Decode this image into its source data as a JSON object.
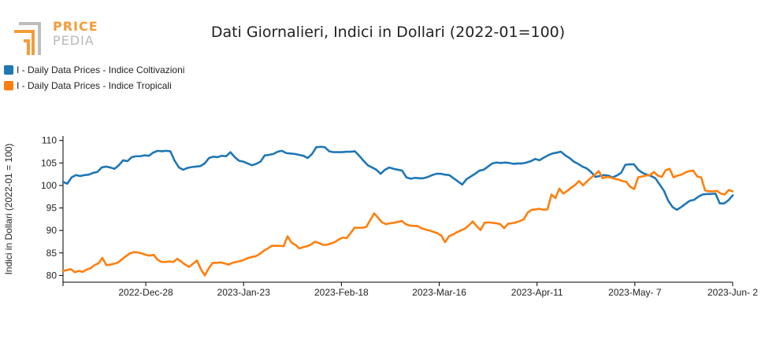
{
  "logo": {
    "text_top": "PRICE",
    "text_bottom": "PEDIA"
  },
  "chart_data": {
    "type": "line",
    "title": "Dati Giornalieri, Indici in Dollari (2022-01=100)",
    "ylabel": "Indici in Dollari (2022-01 = 100)",
    "xlabel": "",
    "x_ticks": [
      "2022-Dec-28",
      "2023-Jan-23",
      "2023-Feb-18",
      "2023-Mar-16",
      "2023-Apr-11",
      "2023-May- 7",
      "2023-Jun- 2"
    ],
    "x_range": [
      "2022-Dec-06",
      "2023-Jun-02"
    ],
    "y_ticks": [
      80,
      85,
      90,
      95,
      100,
      105,
      110
    ],
    "ylim": [
      78.5,
      111
    ],
    "legend_position": "top-left",
    "grid": false,
    "series": [
      {
        "name": "I - Daily Data Prices - Indice Coltivazioni",
        "color": "#1f77b4",
        "values": [
          100.8,
          100.4,
          101.8,
          102.3,
          102.1,
          102.3,
          102.4,
          102.8,
          103.0,
          104.0,
          104.2,
          104.0,
          103.7,
          104.5,
          105.6,
          105.4,
          106.3,
          106.5,
          106.5,
          106.7,
          106.6,
          107.3,
          107.7,
          107.6,
          107.7,
          107.6,
          105.5,
          104.0,
          103.5,
          103.9,
          104.1,
          104.2,
          104.3,
          104.9,
          106.1,
          106.4,
          106.3,
          106.6,
          106.5,
          107.4,
          106.3,
          105.5,
          105.3,
          104.9,
          104.5,
          104.8,
          105.3,
          106.7,
          106.8,
          107.0,
          107.5,
          107.7,
          107.2,
          107.1,
          107.0,
          106.8,
          106.6,
          106.1,
          107.0,
          108.5,
          108.6,
          108.5,
          107.6,
          107.4,
          107.4,
          107.4,
          107.5,
          107.5,
          107.6,
          106.6,
          105.5,
          104.5,
          104.0,
          103.5,
          102.6,
          103.5,
          104.0,
          103.7,
          103.5,
          103.3,
          101.8,
          101.5,
          101.7,
          101.6,
          101.6,
          101.9,
          102.3,
          102.6,
          102.6,
          102.4,
          102.3,
          101.6,
          100.9,
          100.2,
          101.4,
          102.0,
          102.6,
          103.3,
          103.5,
          104.2,
          104.9,
          105.1,
          105.0,
          105.1,
          105.0,
          104.8,
          104.9,
          104.9,
          105.1,
          105.4,
          105.9,
          105.6,
          106.2,
          106.7,
          107.1,
          107.3,
          107.5,
          106.7,
          106.1,
          105.3,
          104.8,
          104.2,
          103.8,
          103.0,
          101.9,
          102.1,
          102.3,
          102.2,
          101.8,
          102.2,
          102.8,
          104.6,
          104.7,
          104.7,
          103.5,
          102.8,
          102.4,
          102.1,
          101.6,
          100.2,
          98.8,
          96.6,
          95.2,
          94.6,
          95.2,
          95.9,
          96.6,
          96.8,
          97.5,
          98.0,
          98.1,
          98.1,
          98.2,
          96.0,
          96.0,
          96.7,
          97.8
        ]
      },
      {
        "name": "I - Daily Data Prices - Indice Tropicali",
        "color": "#ff7f0e",
        "values": [
          81.0,
          81.2,
          81.4,
          80.7,
          81.0,
          80.8,
          81.3,
          81.6,
          82.3,
          82.7,
          83.9,
          82.3,
          82.4,
          82.6,
          82.9,
          83.6,
          84.3,
          84.9,
          85.2,
          85.1,
          84.9,
          84.6,
          84.4,
          84.6,
          83.5,
          83.0,
          83.0,
          83.1,
          83.0,
          83.7,
          83.1,
          82.4,
          81.9,
          82.6,
          83.3,
          81.4,
          80.0,
          81.6,
          82.8,
          82.8,
          82.9,
          82.7,
          82.4,
          82.8,
          83.0,
          83.2,
          83.5,
          83.9,
          84.1,
          84.3,
          84.8,
          85.5,
          86.0,
          86.6,
          86.6,
          86.6,
          86.5,
          88.7,
          87.3,
          86.8,
          86.0,
          86.3,
          86.5,
          86.9,
          87.5,
          87.2,
          86.8,
          86.8,
          87.1,
          87.4,
          88.0,
          88.4,
          88.3,
          89.4,
          90.6,
          90.6,
          90.6,
          90.8,
          92.3,
          93.8,
          92.8,
          91.8,
          91.4,
          91.6,
          91.7,
          91.9,
          92.1,
          91.4,
          91.1,
          91.0,
          91.0,
          90.5,
          90.2,
          90.0,
          89.7,
          89.4,
          88.9,
          87.4,
          88.7,
          89.1,
          89.6,
          90.0,
          90.4,
          91.1,
          92.0,
          91.0,
          90.1,
          91.7,
          91.8,
          91.7,
          91.6,
          91.4,
          90.5,
          91.5,
          91.6,
          91.8,
          92.1,
          92.5,
          94.0,
          94.6,
          94.7,
          94.8,
          94.6,
          94.7,
          98.0,
          97.2,
          99.3,
          98.2,
          98.8,
          99.5,
          100.1,
          101.0,
          100.0,
          100.9,
          101.7,
          102.4,
          103.2,
          101.6,
          101.9,
          101.8,
          101.5,
          101.3,
          101.0,
          100.8,
          99.7,
          99.2,
          101.8,
          102.0,
          102.2,
          102.3,
          103.0,
          102.2,
          101.9,
          103.4,
          103.7,
          101.8,
          102.2,
          102.4,
          102.9,
          103.2,
          103.3,
          102.0,
          101.8,
          98.9,
          98.7,
          98.7,
          98.8,
          98.2,
          98.0,
          99.0,
          98.7
        ]
      }
    ]
  }
}
